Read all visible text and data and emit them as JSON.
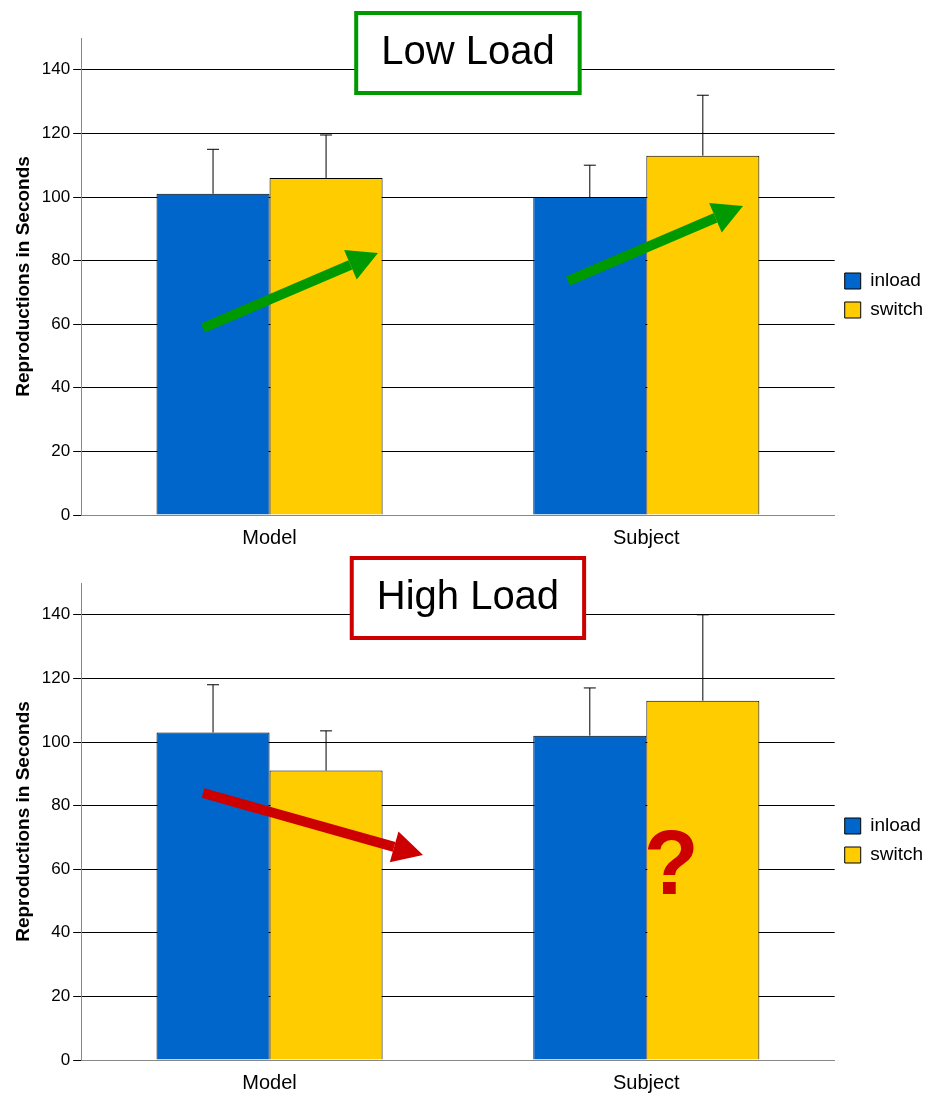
{
  "chart_data": [
    {
      "type": "bar",
      "title": "Low Load",
      "ylabel": "Reproductions in Seconds",
      "categories": [
        "Model",
        "Subject"
      ],
      "series": [
        {
          "name": "inload",
          "color": "#0066cc",
          "values": [
            101,
            100
          ],
          "errors": [
            [
              101,
              115
            ],
            [
              100,
              110
            ]
          ]
        },
        {
          "name": "switch",
          "color": "#ffcc00",
          "values": [
            106,
            113
          ],
          "errors": [
            [
              106,
              119.5
            ],
            [
              113,
              132
            ]
          ]
        }
      ],
      "ylim": [
        0,
        150
      ],
      "yticks": [
        0,
        20,
        40,
        60,
        80,
        100,
        120,
        140
      ],
      "grid": "y",
      "legend": "right"
    },
    {
      "type": "bar",
      "title": "High Load",
      "ylabel": "Reproductions in Seconds",
      "categories": [
        "Model",
        "Subject"
      ],
      "series": [
        {
          "name": "inload",
          "color": "#0066cc",
          "values": [
            103,
            102
          ],
          "errors": [
            [
              103,
              118
            ],
            [
              102,
              117
            ]
          ]
        },
        {
          "name": "switch",
          "color": "#ffcc00",
          "values": [
            91,
            113
          ],
          "errors": [
            [
              91,
              103.5
            ],
            [
              113,
              140
            ]
          ]
        }
      ],
      "ylim": [
        0,
        150
      ],
      "yticks": [
        0,
        20,
        40,
        60,
        80,
        100,
        120,
        140
      ],
      "grid": "y",
      "legend": "right",
      "annotations": [
        "?"
      ]
    }
  ]
}
